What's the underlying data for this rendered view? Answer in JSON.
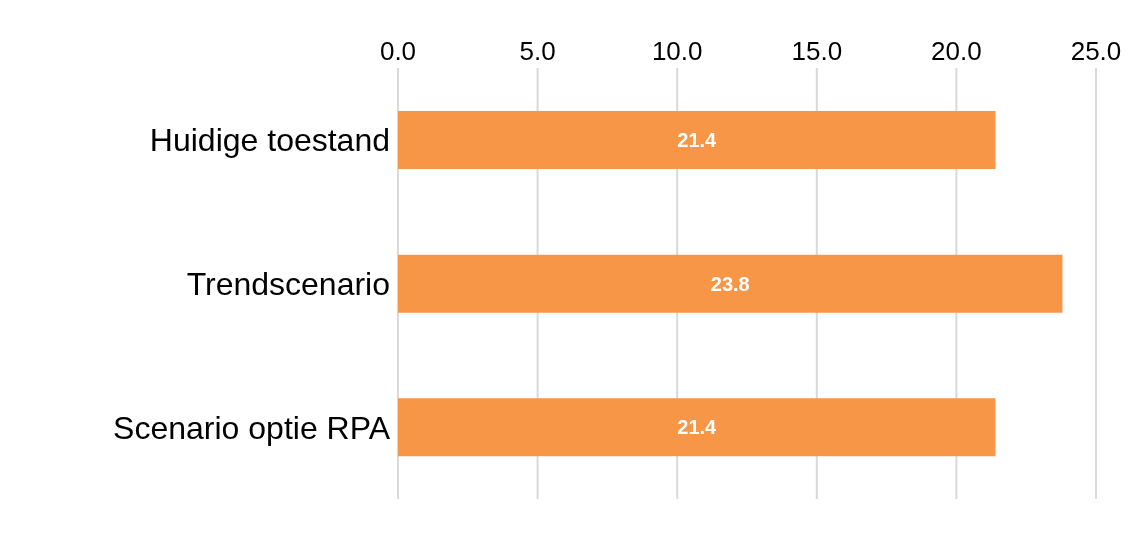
{
  "chart_data": {
    "type": "bar",
    "orientation": "horizontal",
    "categories": [
      "Huidige toestand",
      "Trendscenario",
      "Scenario optie RPA"
    ],
    "values": [
      21.4,
      23.8,
      21.4
    ],
    "color": "#f79646",
    "xlim": [
      0,
      25
    ],
    "xticks": [
      {
        "value": 0,
        "label": "0.0"
      },
      {
        "value": 5,
        "label": "5.0"
      },
      {
        "value": 10,
        "label": "10.0"
      },
      {
        "value": 15,
        "label": "15.0"
      },
      {
        "value": 20,
        "label": "20.0"
      },
      {
        "value": 25,
        "label": "25.0"
      }
    ],
    "grid": "x",
    "data_labels": true,
    "legend": false
  }
}
